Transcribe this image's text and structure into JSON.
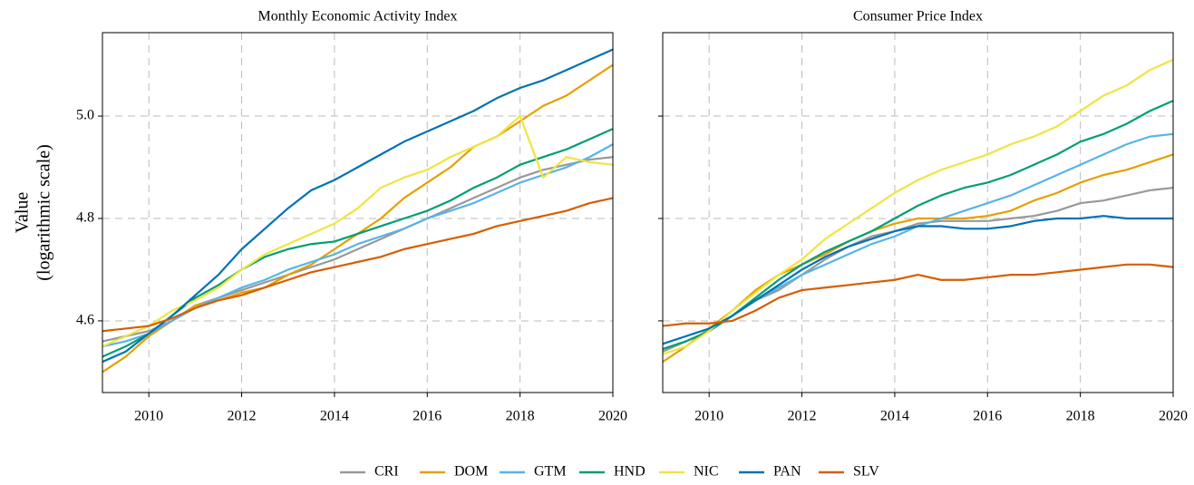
{
  "chart_data": [
    {
      "type": "line",
      "title": "Monthly Economic Activity Index",
      "ylabel": [
        "Value",
        "(logarithmic scale)"
      ],
      "x": [
        2009,
        2009.5,
        2010,
        2010.5,
        2011,
        2011.5,
        2012,
        2012.5,
        2013,
        2013.5,
        2014,
        2014.5,
        2015,
        2015.5,
        2016,
        2016.5,
        2017,
        2017.5,
        2018,
        2018.5,
        2019,
        2019.5,
        2020
      ],
      "xlim": [
        2009,
        2020
      ],
      "xticks": [
        2010,
        2012,
        2014,
        2016,
        2018,
        2020
      ],
      "ylim": [
        4.46,
        5.163
      ],
      "yticks": [
        4.6,
        4.8,
        {
          "value": 5,
          "label": "5.0"
        }
      ],
      "grid": true,
      "legend": "bottom",
      "series": [
        {
          "name": "CRI",
          "color": "#999999",
          "values": [
            4.56,
            4.57,
            4.58,
            4.6,
            4.63,
            4.645,
            4.66,
            4.675,
            4.69,
            4.705,
            4.72,
            4.74,
            4.76,
            4.78,
            4.8,
            4.82,
            4.84,
            4.86,
            4.88,
            4.895,
            4.905,
            4.915,
            4.92
          ]
        },
        {
          "name": "DOM",
          "color": "#E69F00",
          "values": [
            4.5,
            4.53,
            4.57,
            4.6,
            4.63,
            4.64,
            4.655,
            4.665,
            4.69,
            4.71,
            4.74,
            4.77,
            4.8,
            4.84,
            4.87,
            4.9,
            4.94,
            4.96,
            4.99,
            5.02,
            5.04,
            5.07,
            5.1
          ]
        },
        {
          "name": "GTM",
          "color": "#56B4E9",
          "values": [
            4.55,
            4.56,
            4.575,
            4.6,
            4.625,
            4.645,
            4.665,
            4.68,
            4.7,
            4.715,
            4.73,
            4.75,
            4.765,
            4.78,
            4.8,
            4.815,
            4.83,
            4.85,
            4.87,
            4.885,
            4.9,
            4.92,
            4.945
          ]
        },
        {
          "name": "HND",
          "color": "#009E73",
          "values": [
            4.53,
            4.55,
            4.575,
            4.61,
            4.645,
            4.67,
            4.7,
            4.725,
            4.74,
            4.75,
            4.755,
            4.77,
            4.785,
            4.8,
            4.815,
            4.835,
            4.86,
            4.88,
            4.905,
            4.92,
            4.935,
            4.955,
            4.975
          ]
        },
        {
          "name": "NIC",
          "color": "#F0E442",
          "values": [
            4.55,
            4.57,
            4.59,
            4.62,
            4.64,
            4.665,
            4.7,
            4.73,
            4.75,
            4.77,
            4.79,
            4.82,
            4.86,
            4.88,
            4.895,
            4.92,
            4.94,
            4.96,
            5.0,
            4.88,
            4.92,
            4.91,
            4.905
          ]
        },
        {
          "name": "PAN",
          "color": "#0072B2",
          "values": [
            4.52,
            4.54,
            4.575,
            4.61,
            4.65,
            4.69,
            4.74,
            4.78,
            4.82,
            4.855,
            4.875,
            4.9,
            4.925,
            4.95,
            4.97,
            4.99,
            5.01,
            5.035,
            5.055,
            5.07,
            5.09,
            5.11,
            5.13
          ]
        },
        {
          "name": "SLV",
          "color": "#D55E00",
          "values": [
            4.58,
            4.585,
            4.59,
            4.605,
            4.625,
            4.64,
            4.65,
            4.665,
            4.68,
            4.695,
            4.705,
            4.715,
            4.725,
            4.74,
            4.75,
            4.76,
            4.77,
            4.785,
            4.795,
            4.805,
            4.815,
            4.83,
            4.84
          ]
        }
      ]
    },
    {
      "type": "line",
      "title": "Consumer Price Index",
      "sharey": true,
      "x": [
        2009,
        2009.5,
        2010,
        2010.5,
        2011,
        2011.5,
        2012,
        2012.5,
        2013,
        2013.5,
        2014,
        2014.5,
        2015,
        2015.5,
        2016,
        2016.5,
        2017,
        2017.5,
        2018,
        2018.5,
        2019,
        2019.5,
        2020
      ],
      "xlim": [
        2009,
        2020
      ],
      "xticks": [
        2010,
        2012,
        2014,
        2016,
        2018,
        2020
      ],
      "grid": true,
      "series": [
        {
          "color": "#999999",
          "values": [
            4.54,
            4.56,
            4.58,
            4.61,
            4.64,
            4.66,
            4.69,
            4.72,
            4.745,
            4.765,
            4.775,
            4.79,
            4.795,
            4.795,
            4.795,
            4.8,
            4.805,
            4.815,
            4.83,
            4.835,
            4.845,
            4.855,
            4.86
          ]
        },
        {
          "color": "#E69F00",
          "values": [
            4.52,
            4.55,
            4.585,
            4.62,
            4.66,
            4.69,
            4.71,
            4.73,
            4.755,
            4.775,
            4.79,
            4.8,
            4.8,
            4.8,
            4.805,
            4.815,
            4.835,
            4.85,
            4.87,
            4.885,
            4.895,
            4.91,
            4.925
          ]
        },
        {
          "color": "#56B4E9",
          "values": [
            4.545,
            4.56,
            4.58,
            4.61,
            4.64,
            4.665,
            4.69,
            4.71,
            4.73,
            4.75,
            4.765,
            4.785,
            4.8,
            4.815,
            4.83,
            4.845,
            4.865,
            4.885,
            4.905,
            4.925,
            4.945,
            4.96,
            4.965
          ]
        },
        {
          "color": "#009E73",
          "values": [
            4.545,
            4.56,
            4.58,
            4.61,
            4.645,
            4.68,
            4.71,
            4.735,
            4.755,
            4.775,
            4.8,
            4.825,
            4.845,
            4.86,
            4.87,
            4.885,
            4.905,
            4.925,
            4.95,
            4.965,
            4.985,
            5.01,
            5.03
          ]
        },
        {
          "color": "#F0E442",
          "values": [
            4.535,
            4.55,
            4.58,
            4.62,
            4.655,
            4.69,
            4.72,
            4.76,
            4.79,
            4.82,
            4.85,
            4.875,
            4.895,
            4.91,
            4.925,
            4.945,
            4.96,
            4.98,
            5.01,
            5.04,
            5.06,
            5.09,
            5.11
          ]
        },
        {
          "color": "#0072B2",
          "values": [
            4.555,
            4.57,
            4.585,
            4.61,
            4.64,
            4.67,
            4.7,
            4.725,
            4.745,
            4.76,
            4.775,
            4.785,
            4.785,
            4.78,
            4.78,
            4.785,
            4.795,
            4.8,
            4.8,
            4.805,
            4.8,
            4.8,
            4.8
          ]
        },
        {
          "color": "#D55E00",
          "values": [
            4.59,
            4.595,
            4.595,
            4.6,
            4.62,
            4.645,
            4.66,
            4.665,
            4.67,
            4.675,
            4.68,
            4.69,
            4.68,
            4.68,
            4.685,
            4.69,
            4.69,
            4.695,
            4.7,
            4.705,
            4.71,
            4.71,
            4.705
          ]
        }
      ]
    }
  ]
}
